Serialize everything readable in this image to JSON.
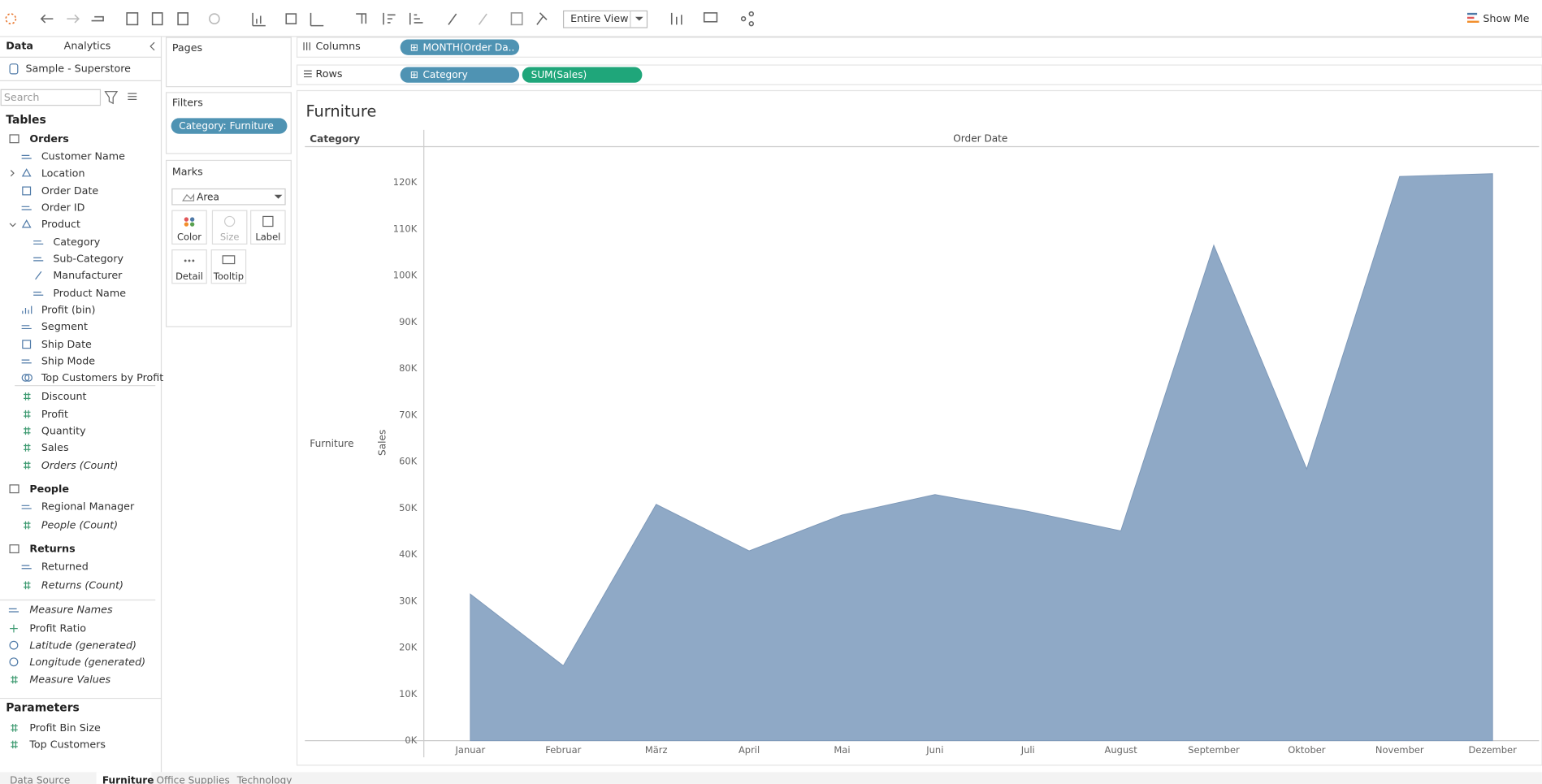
{
  "toolbar": {
    "view_mode": "Entire View",
    "show_me": "Show Me"
  },
  "sidebar": {
    "tabs": [
      "Data",
      "Analytics"
    ],
    "datasource": "Sample - Superstore",
    "search_placeholder": "Search",
    "tables_heading": "Tables",
    "groups": [
      {
        "name": "Orders",
        "fields": [
          "Customer Name",
          "Location",
          "Order Date",
          "Order ID",
          "Product",
          "Category",
          "Sub-Category",
          "Manufacturer",
          "Product Name",
          "Profit (bin)",
          "Segment",
          "Ship Date",
          "Ship Mode",
          "Top Customers by Profit",
          "Discount",
          "Profit",
          "Quantity",
          "Sales",
          "Orders (Count)"
        ]
      },
      {
        "name": "People",
        "fields": [
          "Regional Manager",
          "People (Count)"
        ]
      },
      {
        "name": "Returns",
        "fields": [
          "Returned",
          "Returns (Count)"
        ]
      }
    ],
    "extra_fields": [
      "Measure Names",
      "Profit Ratio",
      "Latitude (generated)",
      "Longitude (generated)",
      "Measure Values"
    ],
    "parameters_heading": "Parameters",
    "parameters": [
      "Profit Bin Size",
      "Top Customers"
    ]
  },
  "shelves": {
    "pages": "Pages",
    "filters": "Filters",
    "filter_pills": [
      "Category: Furniture"
    ],
    "marks": "Marks",
    "mark_type": "Area",
    "mark_buttons": [
      "Color",
      "Size",
      "Label",
      "Detail",
      "Tooltip"
    ],
    "columns": "Columns",
    "columns_pills": [
      "MONTH(Order Da.."
    ],
    "rows": "Rows",
    "rows_pills": [
      "Category",
      "SUM(Sales)"
    ]
  },
  "sheet_tabs": [
    "Data Source",
    "Furniture",
    "Office Supplies",
    "Technology"
  ],
  "chart_data": {
    "type": "area",
    "title": "Furniture",
    "row_header": "Category",
    "column_header": "Order Date",
    "row_value": "Furniture",
    "ylabel": "Sales",
    "categories": [
      "Januar",
      "Februar",
      "März",
      "April",
      "Mai",
      "Juni",
      "Juli",
      "August",
      "September",
      "Oktober",
      "November",
      "Dezember"
    ],
    "values": [
      31500,
      16100,
      50800,
      40800,
      48500,
      52900,
      49300,
      45100,
      106500,
      58400,
      121300,
      121900
    ],
    "color": "#8fa9c6",
    "ylim": [
      0,
      127500
    ],
    "yticks": [
      {
        "value": 0,
        "label": "0K"
      },
      {
        "value": 10000,
        "label": "10K"
      },
      {
        "value": 20000,
        "label": "20K"
      },
      {
        "value": 30000,
        "label": "30K"
      },
      {
        "value": 40000,
        "label": "40K"
      },
      {
        "value": 50000,
        "label": "50K"
      },
      {
        "value": 60000,
        "label": "60K"
      },
      {
        "value": 70000,
        "label": "70K"
      },
      {
        "value": 80000,
        "label": "80K"
      },
      {
        "value": 90000,
        "label": "90K"
      },
      {
        "value": 100000,
        "label": "100K"
      },
      {
        "value": 110000,
        "label": "110K"
      },
      {
        "value": 120000,
        "label": "120K"
      }
    ],
    "grid": false
  }
}
